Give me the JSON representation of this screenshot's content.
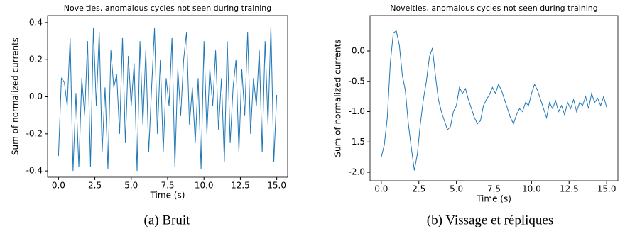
{
  "chart_data": [
    {
      "type": "line",
      "title": "Novelties, anomalous cycles not seen during training",
      "xlabel": "Time (s)",
      "ylabel": "Sum of normalized currents",
      "caption": "(a) Bruit",
      "x": [
        0,
        0.2,
        0.4,
        0.6,
        0.8,
        1,
        1.2,
        1.4,
        1.6,
        1.8,
        2,
        2.2,
        2.4,
        2.6,
        2.8,
        3,
        3.2,
        3.4,
        3.6,
        3.8,
        4,
        4.2,
        4.4,
        4.6,
        4.8,
        5,
        5.2,
        5.4,
        5.6,
        5.8,
        6,
        6.2,
        6.4,
        6.6,
        6.8,
        7,
        7.2,
        7.4,
        7.6,
        7.8,
        8,
        8.2,
        8.4,
        8.6,
        8.8,
        9,
        9.2,
        9.4,
        9.6,
        9.8,
        10,
        10.2,
        10.4,
        10.6,
        10.8,
        11,
        11.2,
        11.4,
        11.6,
        11.8,
        12,
        12.2,
        12.4,
        12.6,
        12.8,
        13,
        13.2,
        13.4,
        13.6,
        13.8,
        14,
        14.2,
        14.4,
        14.6,
        14.8,
        15
      ],
      "series": [
        {
          "color": "#1f77b4",
          "values": [
            -0.32,
            0.1,
            0.08,
            -0.05,
            0.32,
            -0.4,
            0.02,
            -0.38,
            0.1,
            -0.1,
            0.3,
            -0.38,
            0.37,
            -0.05,
            0.35,
            -0.3,
            0.05,
            -0.39,
            0.25,
            0.05,
            0.12,
            -0.2,
            0.32,
            -0.25,
            0.22,
            -0.05,
            0.18,
            -0.4,
            0.3,
            -0.15,
            0.25,
            -0.3,
            0.05,
            0.37,
            -0.2,
            0.2,
            -0.3,
            0.1,
            -0.05,
            0.32,
            -0.38,
            0.15,
            -0.1,
            0.2,
            0.35,
            -0.15,
            0.05,
            -0.25,
            0.1,
            -0.39,
            0.3,
            -0.2,
            0.15,
            -0.05,
            0.25,
            -0.18,
            0.1,
            -0.35,
            0.3,
            -0.25,
            0.05,
            0.2,
            -0.3,
            0.15,
            -0.1,
            0.35,
            -0.2,
            0.1,
            -0.05,
            0.25,
            -0.3,
            0.3,
            -0.15,
            0.38,
            -0.35,
            0.01
          ]
        }
      ],
      "xlim": [
        -0.75,
        15.75
      ],
      "ylim": [
        -0.434,
        0.438
      ],
      "xticks": [
        {
          "value": 0,
          "label": "0.0"
        },
        2.5,
        {
          "value": 5,
          "label": "5.0"
        },
        7.5,
        {
          "value": 10,
          "label": "10.0"
        },
        12.5,
        {
          "value": 15,
          "label": "15.0"
        }
      ],
      "yticks": [
        -0.4,
        -0.2,
        {
          "value": 0,
          "label": "0.0"
        },
        0.2,
        0.4
      ]
    },
    {
      "type": "line",
      "title": "Novelties, anomalous cycles not seen during training",
      "xlabel": "Time (s)",
      "ylabel": "Sum of normalized currents",
      "caption": "(b) Vissage et répliques",
      "x": [
        0,
        0.2,
        0.4,
        0.6,
        0.8,
        1,
        1.2,
        1.4,
        1.6,
        1.8,
        2,
        2.2,
        2.4,
        2.6,
        2.8,
        3,
        3.2,
        3.4,
        3.6,
        3.8,
        4,
        4.2,
        4.4,
        4.6,
        4.8,
        5,
        5.2,
        5.4,
        5.6,
        5.8,
        6,
        6.2,
        6.4,
        6.6,
        6.8,
        7,
        7.2,
        7.4,
        7.6,
        7.8,
        8,
        8.2,
        8.4,
        8.6,
        8.8,
        9,
        9.2,
        9.4,
        9.6,
        9.8,
        10,
        10.2,
        10.4,
        10.6,
        10.8,
        11,
        11.2,
        11.4,
        11.6,
        11.8,
        12,
        12.2,
        12.4,
        12.6,
        12.8,
        13,
        13.2,
        13.4,
        13.6,
        13.8,
        14,
        14.2,
        14.4,
        14.6,
        14.8,
        15
      ],
      "series": [
        {
          "color": "#1f77b4",
          "values": [
            -1.75,
            -1.55,
            -1.1,
            -0.2,
            0.3,
            0.33,
            0.1,
            -0.4,
            -0.65,
            -1.2,
            -1.6,
            -1.97,
            -1.7,
            -1.2,
            -0.8,
            -0.5,
            -0.1,
            0.05,
            -0.4,
            -0.8,
            -1.0,
            -1.15,
            -1.3,
            -1.25,
            -1.0,
            -0.9,
            -0.6,
            -0.7,
            -0.62,
            -0.8,
            -0.95,
            -1.1,
            -1.2,
            -1.15,
            -0.9,
            -0.8,
            -0.72,
            -0.6,
            -0.7,
            -0.55,
            -0.65,
            -0.8,
            -0.95,
            -1.1,
            -1.2,
            -1.05,
            -0.95,
            -1.0,
            -0.85,
            -0.9,
            -0.7,
            -0.55,
            -0.65,
            -0.8,
            -0.95,
            -1.1,
            -0.85,
            -0.95,
            -0.82,
            -1.0,
            -0.9,
            -1.05,
            -0.85,
            -0.95,
            -0.8,
            -1.0,
            -0.85,
            -0.9,
            -0.75,
            -0.95,
            -0.7,
            -0.85,
            -0.78,
            -0.9,
            -0.75,
            -0.93
          ]
        }
      ],
      "xlim": [
        -0.75,
        15.75
      ],
      "ylim": [
        -2.14,
        0.585
      ],
      "xticks": [
        {
          "value": 0,
          "label": "0.0"
        },
        2.5,
        {
          "value": 5,
          "label": "5.0"
        },
        7.5,
        {
          "value": 10,
          "label": "10.0"
        },
        12.5,
        {
          "value": 15,
          "label": "15.0"
        }
      ],
      "yticks": [
        {
          "value": -2,
          "label": "-2.0"
        },
        -1.5,
        {
          "value": -1,
          "label": "-1.0"
        },
        -0.5,
        {
          "value": 0,
          "label": "0.0"
        }
      ]
    }
  ]
}
